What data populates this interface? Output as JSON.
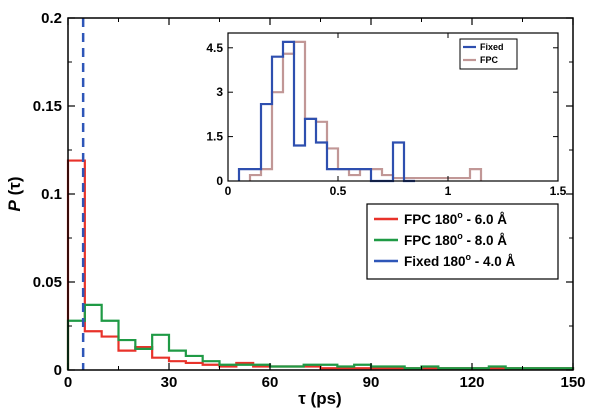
{
  "chart_data": {
    "main": {
      "type": "histogram",
      "xlabel": "τ (ps)",
      "ylabel": "P (τ)",
      "xlim": [
        0,
        150
      ],
      "ylim": [
        0,
        0.2
      ],
      "xticks": [
        "0",
        "30",
        "60",
        "90",
        "120",
        "150"
      ],
      "yticks": [
        "0",
        "0.05",
        "0.1",
        "0.15",
        "0.2"
      ],
      "grid": false,
      "legend_position": "right",
      "bin_width": 5,
      "bin_starts": [
        0,
        5,
        10,
        15,
        20,
        25,
        30,
        35,
        40,
        45,
        50,
        55,
        60,
        65,
        70,
        75,
        80,
        85,
        90,
        95,
        100,
        105,
        110,
        115,
        120,
        125,
        130,
        135,
        140,
        145
      ],
      "series": [
        {
          "label": "FPC 180",
          "label_sup": "o",
          "label_rest": " - 6.0 Å",
          "color": "#e8322a",
          "values": [
            0.119,
            0.022,
            0.019,
            0.011,
            0.013,
            0.007,
            0.005,
            0.004,
            0.003,
            0.002,
            0.004,
            0.002,
            0.002,
            0.002,
            0.002,
            0.001,
            0.001,
            0.001,
            0.001,
            0.001,
            0.001,
            0.001,
            0.001,
            0.001,
            0.001,
            0.001,
            0.001,
            0.001,
            0.001,
            0.001
          ]
        },
        {
          "label": "FPC 180",
          "label_sup": "o",
          "label_rest": " - 8.0 Å",
          "color": "#1f9a45",
          "values": [
            0.028,
            0.037,
            0.028,
            0.017,
            0.012,
            0.02,
            0.011,
            0.008,
            0.005,
            0.003,
            0.003,
            0.003,
            0.002,
            0.002,
            0.003,
            0.003,
            0.002,
            0.003,
            0.002,
            0.002,
            0.001,
            0.002,
            0.001,
            0.001,
            0.001,
            0.002,
            0.001,
            0.001,
            0.001,
            0.001
          ]
        },
        {
          "label": "Fixed 180",
          "label_sup": "o",
          "label_rest": " - 4.0 Å",
          "color": "#2e56b8",
          "style": "dashed-vertical-line",
          "x": 4.5
        }
      ]
    },
    "inset": {
      "type": "histogram",
      "xlim": [
        0,
        1.5
      ],
      "ylim": [
        0,
        5
      ],
      "xticks": [
        "0",
        "0.5",
        "1",
        "1.5"
      ],
      "yticks": [
        "0",
        "1.5",
        "3",
        "4.5"
      ],
      "bin_width": 0.05,
      "series": [
        {
          "name": "Fixed",
          "color": "#2e4faf",
          "bin_starts": [
            0.05,
            0.1,
            0.15,
            0.2,
            0.25,
            0.3,
            0.35,
            0.4,
            0.45,
            0.5,
            0.55,
            0.6,
            0.65,
            0.7,
            0.75,
            0.8
          ],
          "values": [
            0.4,
            0.4,
            2.6,
            4.2,
            4.7,
            1.2,
            2.1,
            1.3,
            0.4,
            0.4,
            0.4,
            0.4,
            0,
            0,
            1.3,
            0
          ]
        },
        {
          "name": "FPC",
          "color": "#c19796",
          "bin_starts": [
            0.1,
            0.15,
            0.2,
            0.25,
            0.3,
            0.35,
            0.4,
            0.45,
            0.5,
            0.55,
            0.6,
            0.65,
            0.7,
            0.75,
            0.8,
            0.85,
            0.9,
            0.95,
            1.0,
            1.05,
            1.1
          ],
          "values": [
            0.2,
            0.4,
            3.0,
            4.3,
            4.7,
            2.1,
            2.0,
            1.1,
            0.4,
            0.2,
            0.4,
            0.4,
            0.2,
            0.1,
            0.1,
            0.1,
            0.1,
            0.1,
            0.1,
            0.1,
            0.4
          ]
        }
      ]
    }
  }
}
